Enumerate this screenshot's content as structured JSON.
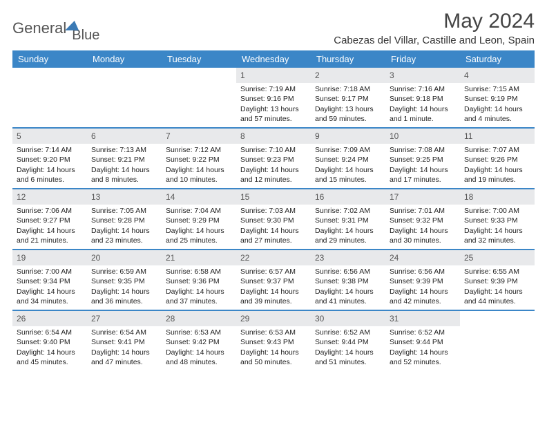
{
  "brand": {
    "word1": "General",
    "word2": "Blue"
  },
  "title": "May 2024",
  "location": "Cabezas del Villar, Castille and Leon, Spain",
  "colors": {
    "header_bg": "#3b86c7",
    "daynum_bg": "#e8e9eb",
    "accent": "#3b7ab5",
    "text": "#333333",
    "bg": "#ffffff"
  },
  "weekdays": [
    "Sunday",
    "Monday",
    "Tuesday",
    "Wednesday",
    "Thursday",
    "Friday",
    "Saturday"
  ],
  "first_weekday_index": 3,
  "days": [
    {
      "n": 1,
      "sr": "7:19 AM",
      "ss": "9:16 PM",
      "dl": "13 hours and 57 minutes."
    },
    {
      "n": 2,
      "sr": "7:18 AM",
      "ss": "9:17 PM",
      "dl": "13 hours and 59 minutes."
    },
    {
      "n": 3,
      "sr": "7:16 AM",
      "ss": "9:18 PM",
      "dl": "14 hours and 1 minute."
    },
    {
      "n": 4,
      "sr": "7:15 AM",
      "ss": "9:19 PM",
      "dl": "14 hours and 4 minutes."
    },
    {
      "n": 5,
      "sr": "7:14 AM",
      "ss": "9:20 PM",
      "dl": "14 hours and 6 minutes."
    },
    {
      "n": 6,
      "sr": "7:13 AM",
      "ss": "9:21 PM",
      "dl": "14 hours and 8 minutes."
    },
    {
      "n": 7,
      "sr": "7:12 AM",
      "ss": "9:22 PM",
      "dl": "14 hours and 10 minutes."
    },
    {
      "n": 8,
      "sr": "7:10 AM",
      "ss": "9:23 PM",
      "dl": "14 hours and 12 minutes."
    },
    {
      "n": 9,
      "sr": "7:09 AM",
      "ss": "9:24 PM",
      "dl": "14 hours and 15 minutes."
    },
    {
      "n": 10,
      "sr": "7:08 AM",
      "ss": "9:25 PM",
      "dl": "14 hours and 17 minutes."
    },
    {
      "n": 11,
      "sr": "7:07 AM",
      "ss": "9:26 PM",
      "dl": "14 hours and 19 minutes."
    },
    {
      "n": 12,
      "sr": "7:06 AM",
      "ss": "9:27 PM",
      "dl": "14 hours and 21 minutes."
    },
    {
      "n": 13,
      "sr": "7:05 AM",
      "ss": "9:28 PM",
      "dl": "14 hours and 23 minutes."
    },
    {
      "n": 14,
      "sr": "7:04 AM",
      "ss": "9:29 PM",
      "dl": "14 hours and 25 minutes."
    },
    {
      "n": 15,
      "sr": "7:03 AM",
      "ss": "9:30 PM",
      "dl": "14 hours and 27 minutes."
    },
    {
      "n": 16,
      "sr": "7:02 AM",
      "ss": "9:31 PM",
      "dl": "14 hours and 29 minutes."
    },
    {
      "n": 17,
      "sr": "7:01 AM",
      "ss": "9:32 PM",
      "dl": "14 hours and 30 minutes."
    },
    {
      "n": 18,
      "sr": "7:00 AM",
      "ss": "9:33 PM",
      "dl": "14 hours and 32 minutes."
    },
    {
      "n": 19,
      "sr": "7:00 AM",
      "ss": "9:34 PM",
      "dl": "14 hours and 34 minutes."
    },
    {
      "n": 20,
      "sr": "6:59 AM",
      "ss": "9:35 PM",
      "dl": "14 hours and 36 minutes."
    },
    {
      "n": 21,
      "sr": "6:58 AM",
      "ss": "9:36 PM",
      "dl": "14 hours and 37 minutes."
    },
    {
      "n": 22,
      "sr": "6:57 AM",
      "ss": "9:37 PM",
      "dl": "14 hours and 39 minutes."
    },
    {
      "n": 23,
      "sr": "6:56 AM",
      "ss": "9:38 PM",
      "dl": "14 hours and 41 minutes."
    },
    {
      "n": 24,
      "sr": "6:56 AM",
      "ss": "9:39 PM",
      "dl": "14 hours and 42 minutes."
    },
    {
      "n": 25,
      "sr": "6:55 AM",
      "ss": "9:39 PM",
      "dl": "14 hours and 44 minutes."
    },
    {
      "n": 26,
      "sr": "6:54 AM",
      "ss": "9:40 PM",
      "dl": "14 hours and 45 minutes."
    },
    {
      "n": 27,
      "sr": "6:54 AM",
      "ss": "9:41 PM",
      "dl": "14 hours and 47 minutes."
    },
    {
      "n": 28,
      "sr": "6:53 AM",
      "ss": "9:42 PM",
      "dl": "14 hours and 48 minutes."
    },
    {
      "n": 29,
      "sr": "6:53 AM",
      "ss": "9:43 PM",
      "dl": "14 hours and 50 minutes."
    },
    {
      "n": 30,
      "sr": "6:52 AM",
      "ss": "9:44 PM",
      "dl": "14 hours and 51 minutes."
    },
    {
      "n": 31,
      "sr": "6:52 AM",
      "ss": "9:44 PM",
      "dl": "14 hours and 52 minutes."
    }
  ],
  "labels": {
    "sunrise": "Sunrise:",
    "sunset": "Sunset:",
    "daylight": "Daylight:"
  }
}
